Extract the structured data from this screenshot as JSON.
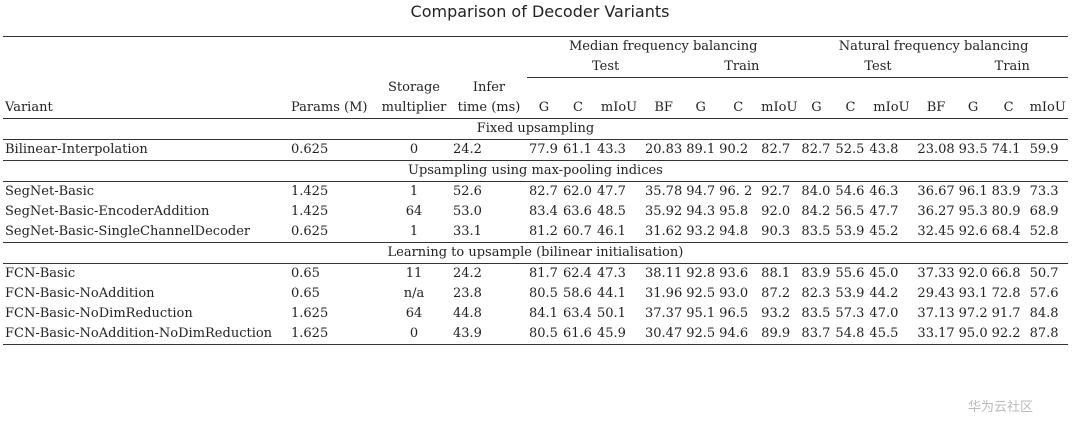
{
  "title": "Comparison of Decoder Variants",
  "header": {
    "group_median": "Median frequency balancing",
    "group_natural": "Natural frequency balancing",
    "test": "Test",
    "train": "Train",
    "variant": "Variant",
    "params": "Params (M)",
    "storage_1": "Storage",
    "storage_2": "multiplier",
    "infer_1": "Infer",
    "infer_2": "time (ms)",
    "metrics_test": [
      "G",
      "C",
      "mIoU",
      "BF"
    ],
    "metrics_train": [
      "G",
      "C",
      "mIoU"
    ]
  },
  "sections": [
    {
      "title": "Fixed upsampling",
      "rows": [
        {
          "name": "Bilinear-Interpolation",
          "params": "0.625",
          "storage": "0",
          "infer": "24.2",
          "m": [
            "77.9",
            "61.1",
            "43.3",
            "20.83",
            "89.1",
            "90.2",
            "82.7"
          ],
          "n": [
            "82.7",
            "52.5",
            "43.8",
            "23.08",
            "93.5",
            "74.1",
            "59.9"
          ]
        }
      ]
    },
    {
      "title": "Upsampling using max-pooling indices",
      "rows": [
        {
          "name": "SegNet-Basic",
          "params": "1.425",
          "storage": "1",
          "infer": "52.6",
          "m": [
            "82.7",
            "62.0",
            "47.7",
            "35.78",
            "94.7",
            "96. 2",
            "92.7"
          ],
          "n": [
            "84.0",
            "54.6",
            "46.3",
            "36.67",
            "96.1",
            "83.9",
            "73.3"
          ]
        },
        {
          "name": "SegNet-Basic-EncoderAddition",
          "params": "1.425",
          "storage": "64",
          "infer": "53.0",
          "m": [
            "83.4",
            "63.6",
            "48.5",
            "35.92",
            "94.3",
            "95.8",
            "92.0"
          ],
          "n": [
            "84.2",
            "56.5",
            "47.7",
            "36.27",
            "95.3",
            "80.9",
            "68.9"
          ]
        },
        {
          "name": "SegNet-Basic-SingleChannelDecoder",
          "params": "0.625",
          "storage": "1",
          "infer": "33.1",
          "m": [
            "81.2",
            "60.7",
            "46.1",
            "31.62",
            "93.2",
            "94.8",
            "90.3"
          ],
          "n": [
            "83.5",
            "53.9",
            "45.2",
            "32.45",
            "92.6",
            "68.4",
            "52.8"
          ]
        }
      ]
    },
    {
      "title": "Learning to upsample (bilinear initialisation)",
      "rows": [
        {
          "name": "FCN-Basic",
          "params": "0.65",
          "storage": "11",
          "infer": "24.2",
          "m": [
            "81.7",
            "62.4",
            "47.3",
            "38.11",
            "92.8",
            "93.6",
            "88.1"
          ],
          "n": [
            "83.9",
            "55.6",
            "45.0",
            "37.33",
            "92.0",
            "66.8",
            "50.7"
          ]
        },
        {
          "name": "FCN-Basic-NoAddition",
          "params": "0.65",
          "storage": "n/a",
          "infer": "23.8",
          "m": [
            "80.5",
            "58.6",
            "44.1",
            "31.96",
            "92.5",
            "93.0",
            "87.2"
          ],
          "n": [
            "82.3",
            "53.9",
            "44.2",
            "29.43",
            "93.1",
            "72.8",
            "57.6"
          ]
        },
        {
          "name": "FCN-Basic-NoDimReduction",
          "params": "1.625",
          "storage": "64",
          "infer": "44.8",
          "m": [
            "84.1",
            "63.4",
            "50.1",
            "37.37",
            "95.1",
            "96.5",
            "93.2"
          ],
          "n": [
            "83.5",
            "57.3",
            "47.0",
            "37.13",
            "97.2",
            "91.7",
            "84.8"
          ]
        },
        {
          "name": "FCN-Basic-NoAddition-NoDimReduction",
          "params": "1.625",
          "storage": "0",
          "infer": "43.9",
          "m": [
            "80.5",
            "61.6",
            "45.9",
            "30.47",
            "92.5",
            "94.6",
            "89.9"
          ],
          "n": [
            "83.7",
            "54.8",
            "45.5",
            "33.17",
            "95.0",
            "92.2",
            "87.8"
          ]
        }
      ]
    }
  ],
  "watermark": "华为云社区"
}
